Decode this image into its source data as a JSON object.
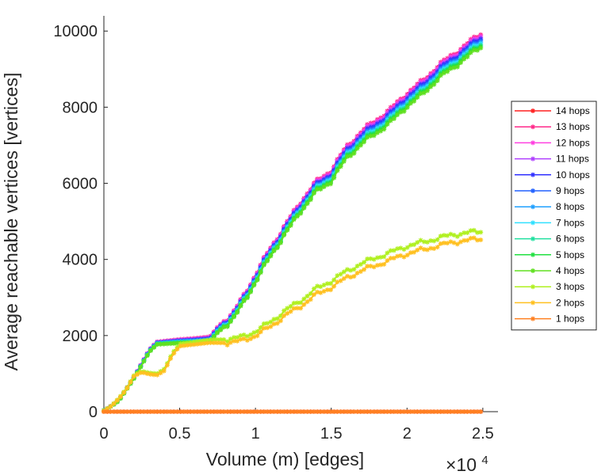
{
  "chart_data": {
    "type": "line",
    "title": "",
    "xlabel": "Volume (m) [edges]",
    "ylabel": "Average reachable vertices [vertices]",
    "x_multiplier_label": "×10",
    "x_multiplier_exponent": "4",
    "xlim": [
      0,
      2.6
    ],
    "ylim": [
      0,
      10400
    ],
    "x_ticks": [
      0,
      0.5,
      1,
      1.5,
      2,
      2.5
    ],
    "x_tick_labels": [
      "0",
      "0.5",
      "1",
      "1.5",
      "2",
      "2.5"
    ],
    "y_ticks": [
      0,
      2000,
      4000,
      6000,
      8000,
      10000
    ],
    "y_tick_labels": [
      "0",
      "2000",
      "4000",
      "6000",
      "8000",
      "10000"
    ],
    "legend_position": "outside-right",
    "series": [
      {
        "name": "14 hops",
        "color": "#ff2020",
        "group": "flat"
      },
      {
        "name": "13 hops",
        "color": "#ff2a8a",
        "group": "high"
      },
      {
        "name": "12 hops",
        "color": "#ff40e0",
        "group": "high"
      },
      {
        "name": "11 hops",
        "color": "#b040ff",
        "group": "high"
      },
      {
        "name": "10 hops",
        "color": "#3030ff",
        "group": "high"
      },
      {
        "name": "9 hops",
        "color": "#2060ff",
        "group": "high"
      },
      {
        "name": "8 hops",
        "color": "#20a0ff",
        "group": "high"
      },
      {
        "name": "7 hops",
        "color": "#30e0ff",
        "group": "high"
      },
      {
        "name": "6 hops",
        "color": "#20e0a0",
        "group": "high"
      },
      {
        "name": "5 hops",
        "color": "#20e040",
        "group": "high"
      },
      {
        "name": "4 hops",
        "color": "#60e020",
        "group": "high"
      },
      {
        "name": "3 hops",
        "color": "#b0f020",
        "group": "mid"
      },
      {
        "name": "2 hops",
        "color": "#ffc020",
        "group": "mid"
      },
      {
        "name": "1 hops",
        "color": "#ff8020",
        "group": "flat"
      }
    ],
    "curves": {
      "high": {
        "x": [
          0,
          0.05,
          0.1,
          0.2,
          0.3,
          0.35,
          0.5,
          0.6,
          0.7,
          0.75,
          0.85,
          0.9,
          1.0,
          1.1,
          1.2,
          1.3,
          1.4,
          1.5,
          1.6,
          1.7,
          1.8,
          1.9,
          2.0,
          2.1,
          2.2,
          2.3,
          2.4,
          2.5
        ],
        "y": [
          30,
          150,
          300,
          900,
          1600,
          1800,
          1850,
          1870,
          1900,
          2150,
          2500,
          2800,
          3500,
          4200,
          4800,
          5400,
          5900,
          6200,
          6800,
          7200,
          7500,
          7800,
          8200,
          8500,
          8900,
          9200,
          9500,
          9800
        ]
      },
      "high_spread": 350,
      "mid": {
        "x": [
          0,
          0.05,
          0.1,
          0.15,
          0.2,
          0.25,
          0.3,
          0.35,
          0.4,
          0.45,
          0.5,
          0.6,
          0.7,
          0.8,
          0.9,
          1.0,
          1.1,
          1.2,
          1.3,
          1.4,
          1.5,
          1.6,
          1.7,
          1.8,
          1.9,
          2.0,
          2.1,
          2.2,
          2.3,
          2.4,
          2.5
        ],
        "y": [
          20,
          150,
          350,
          600,
          950,
          1050,
          1000,
          980,
          1100,
          1500,
          1750,
          1800,
          1850,
          1850,
          1900,
          2050,
          2300,
          2600,
          2850,
          3150,
          3350,
          3600,
          3800,
          3950,
          4100,
          4250,
          4350,
          4450,
          4550,
          4600,
          4650
        ]
      },
      "mid_spread": 200,
      "flat": {
        "x": [
          0,
          2.5
        ],
        "y": [
          0,
          0
        ]
      }
    }
  }
}
